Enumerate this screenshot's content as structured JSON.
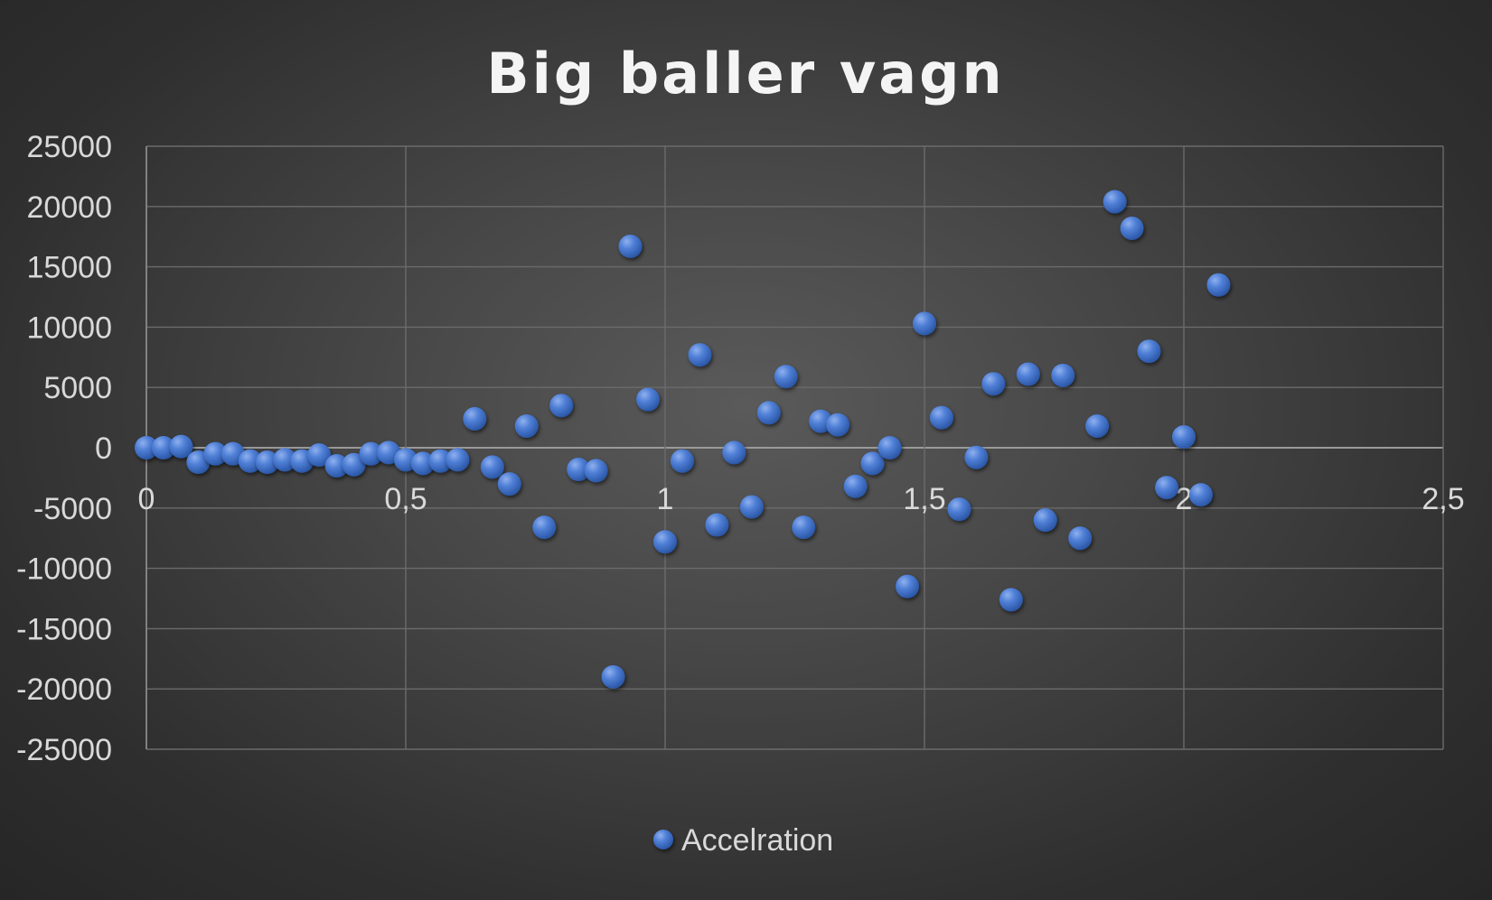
{
  "chart_data": {
    "type": "scatter",
    "title": "Big baller vagn",
    "xlabel": "",
    "ylabel": "",
    "xlim": [
      0,
      2.5
    ],
    "ylim": [
      -25000,
      25000
    ],
    "x_ticks": [
      0,
      0.5,
      1,
      1.5,
      2,
      2.5
    ],
    "x_tick_labels": [
      "0",
      "0,5",
      "1",
      "1,5",
      "2",
      "2,5"
    ],
    "y_ticks": [
      25000,
      20000,
      15000,
      10000,
      5000,
      0,
      -5000,
      -10000,
      -15000,
      -20000,
      -25000
    ],
    "y_tick_labels": [
      "25000",
      "20000",
      "15000",
      "10000",
      "5000",
      "0",
      "-5000",
      "-10000",
      "-15000",
      "-20000",
      "-25000"
    ],
    "grid": true,
    "legend_position": "bottom",
    "marker_color": "#4472c4",
    "series": [
      {
        "name": "Accelration",
        "points": [
          [
            0.0,
            0
          ],
          [
            0.033,
            0
          ],
          [
            0.067,
            100
          ],
          [
            0.1,
            -1200
          ],
          [
            0.133,
            -500
          ],
          [
            0.167,
            -500
          ],
          [
            0.2,
            -1100
          ],
          [
            0.233,
            -1200
          ],
          [
            0.267,
            -1000
          ],
          [
            0.3,
            -1100
          ],
          [
            0.333,
            -600
          ],
          [
            0.367,
            -1500
          ],
          [
            0.4,
            -1400
          ],
          [
            0.433,
            -500
          ],
          [
            0.467,
            -400
          ],
          [
            0.5,
            -1000
          ],
          [
            0.533,
            -1300
          ],
          [
            0.567,
            -1100
          ],
          [
            0.6,
            -1000
          ],
          [
            0.633,
            2400
          ],
          [
            0.667,
            -1600
          ],
          [
            0.7,
            -3000
          ],
          [
            0.733,
            1800
          ],
          [
            0.767,
            -6600
          ],
          [
            0.8,
            3500
          ],
          [
            0.833,
            -1800
          ],
          [
            0.867,
            -1900
          ],
          [
            0.9,
            -19000
          ],
          [
            0.933,
            16700
          ],
          [
            0.967,
            4000
          ],
          [
            1.0,
            -7800
          ],
          [
            1.033,
            -1100
          ],
          [
            1.067,
            7700
          ],
          [
            1.1,
            -6400
          ],
          [
            1.133,
            -400
          ],
          [
            1.167,
            -4900
          ],
          [
            1.2,
            2900
          ],
          [
            1.233,
            5900
          ],
          [
            1.267,
            -6600
          ],
          [
            1.3,
            2200
          ],
          [
            1.333,
            1900
          ],
          [
            1.367,
            -3200
          ],
          [
            1.4,
            -1300
          ],
          [
            1.433,
            0
          ],
          [
            1.467,
            -11500
          ],
          [
            1.5,
            10300
          ],
          [
            1.533,
            2500
          ],
          [
            1.567,
            -5100
          ],
          [
            1.6,
            -800
          ],
          [
            1.633,
            5300
          ],
          [
            1.667,
            -12600
          ],
          [
            1.7,
            6100
          ],
          [
            1.733,
            -6000
          ],
          [
            1.767,
            6000
          ],
          [
            1.8,
            -7500
          ],
          [
            1.833,
            1800
          ],
          [
            1.867,
            20400
          ],
          [
            1.9,
            18200
          ],
          [
            1.933,
            8000
          ],
          [
            1.967,
            -3300
          ],
          [
            2.0,
            900
          ],
          [
            2.033,
            -3900
          ],
          [
            2.067,
            13500
          ]
        ]
      }
    ]
  }
}
